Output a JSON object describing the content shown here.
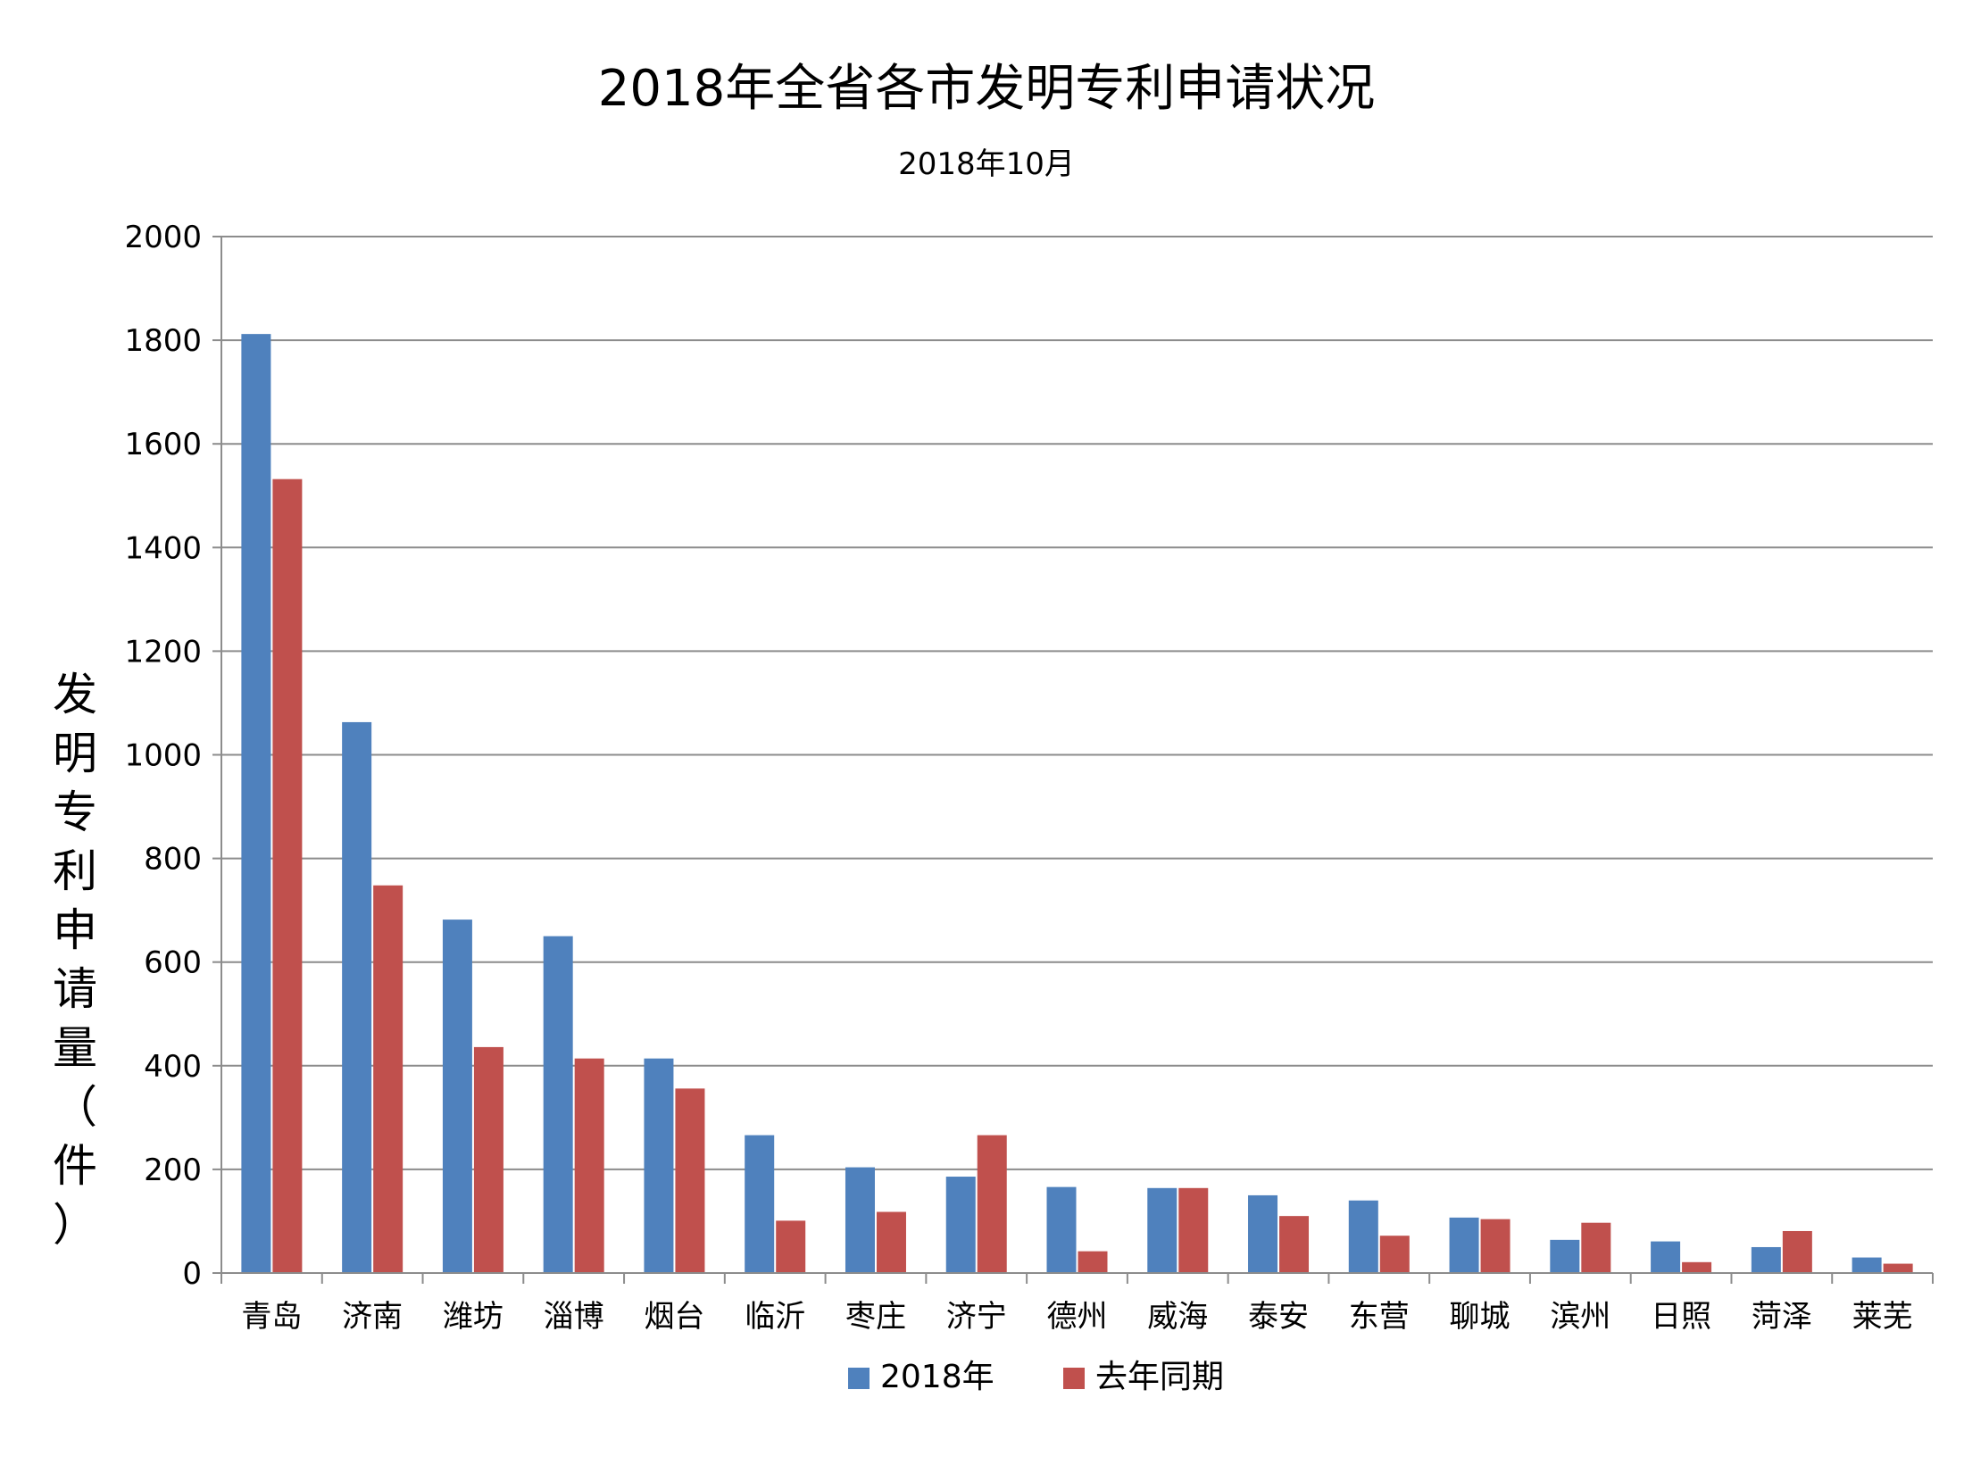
{
  "chart_data": {
    "type": "bar",
    "title": "2018年全省各市发明专利申请状况",
    "subtitle": "2018年10月",
    "xlabel": "",
    "ylabel": "发明专利申请量（件）",
    "ylim": [
      0,
      2000
    ],
    "yticks": [
      0,
      200,
      400,
      600,
      800,
      1000,
      1200,
      1400,
      1600,
      1800,
      2000
    ],
    "grid": true,
    "legend_position": "bottom",
    "categories": [
      "青岛",
      "济南",
      "潍坊",
      "淄博",
      "烟台",
      "临沂",
      "枣庄",
      "济宁",
      "德州",
      "威海",
      "泰安",
      "东营",
      "聊城",
      "滨州",
      "日照",
      "菏泽",
      "莱芜"
    ],
    "series": [
      {
        "name": "2018年",
        "color": "#4f81bd",
        "values": [
          1812,
          1063,
          682,
          650,
          414,
          266,
          204,
          186,
          166,
          164,
          150,
          140,
          107,
          64,
          61,
          50,
          30
        ]
      },
      {
        "name": "去年同期",
        "color": "#c0504d",
        "values": [
          1532,
          748,
          436,
          414,
          356,
          101,
          118,
          266,
          42,
          164,
          110,
          72,
          104,
          97,
          21,
          81,
          18
        ]
      }
    ]
  }
}
